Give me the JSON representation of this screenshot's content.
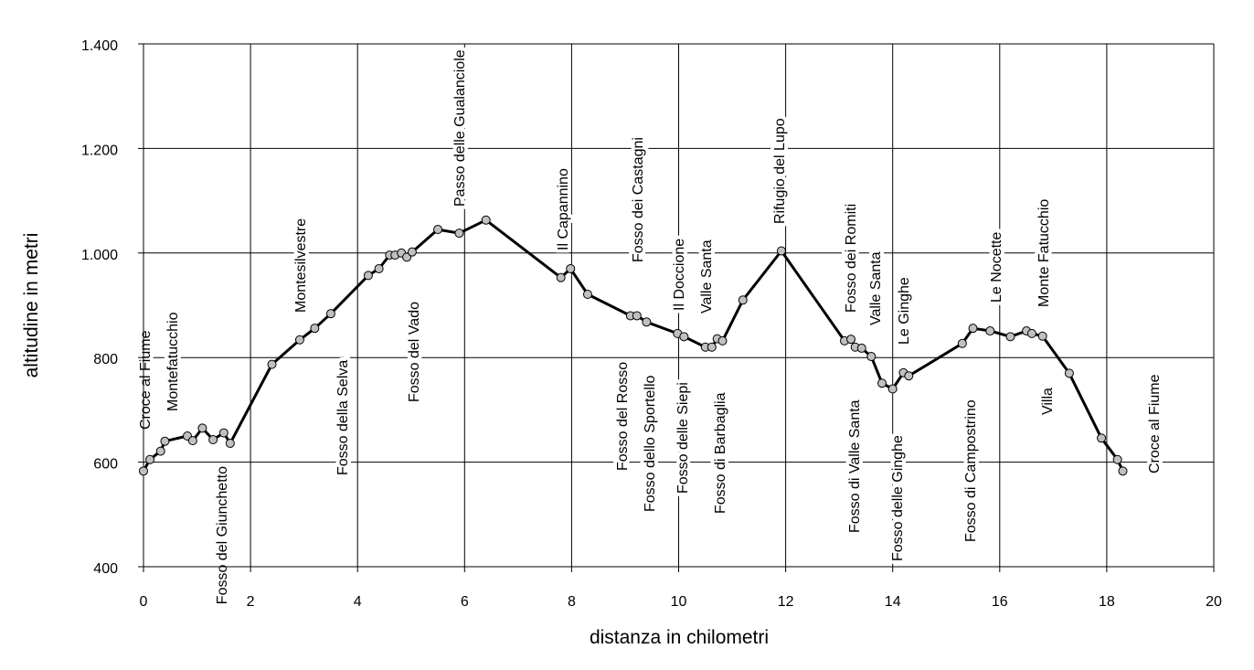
{
  "chart_data": {
    "type": "line",
    "title": "",
    "xlabel": "distanza in chilometri",
    "ylabel": "altitudine  in metri",
    "xlim": [
      0,
      20
    ],
    "ylim": [
      400,
      1400
    ],
    "x_ticks": [
      "0",
      "2",
      "4",
      "6",
      "8",
      "10",
      "12",
      "14",
      "16",
      "18",
      "20"
    ],
    "y_ticks": [
      "400",
      "600",
      "800",
      "1.000",
      "1.200",
      "1.400"
    ],
    "grid": true,
    "series": [
      {
        "name": "",
        "color": "#000000",
        "marker_color": "#c0c0c0",
        "points": [
          [
            0.0,
            583
          ],
          [
            0.12,
            605
          ],
          [
            0.32,
            621
          ],
          [
            0.4,
            640
          ],
          [
            0.82,
            650
          ],
          [
            0.92,
            641
          ],
          [
            1.1,
            665
          ],
          [
            1.3,
            643
          ],
          [
            1.5,
            656
          ],
          [
            1.62,
            636
          ],
          [
            2.4,
            787
          ],
          [
            2.92,
            834
          ],
          [
            3.2,
            856
          ],
          [
            3.5,
            884
          ],
          [
            4.2,
            957
          ],
          [
            4.4,
            970
          ],
          [
            4.6,
            996
          ],
          [
            4.7,
            996
          ],
          [
            4.82,
            1000
          ],
          [
            4.92,
            992
          ],
          [
            5.02,
            1002
          ],
          [
            5.5,
            1045
          ],
          [
            5.9,
            1038
          ],
          [
            6.4,
            1063
          ],
          [
            7.8,
            953
          ],
          [
            7.98,
            970
          ],
          [
            8.3,
            921
          ],
          [
            9.1,
            880
          ],
          [
            9.22,
            880
          ],
          [
            9.4,
            868
          ],
          [
            9.98,
            846
          ],
          [
            10.1,
            840
          ],
          [
            10.5,
            820
          ],
          [
            10.62,
            820
          ],
          [
            10.72,
            836
          ],
          [
            10.82,
            832
          ],
          [
            11.2,
            910
          ],
          [
            11.92,
            1004
          ],
          [
            13.1,
            832
          ],
          [
            13.22,
            835
          ],
          [
            13.3,
            820
          ],
          [
            13.42,
            818
          ],
          [
            13.6,
            802
          ],
          [
            13.8,
            751
          ],
          [
            14.0,
            740
          ],
          [
            14.2,
            771
          ],
          [
            14.3,
            765
          ],
          [
            15.3,
            827
          ],
          [
            15.5,
            856
          ],
          [
            15.82,
            851
          ],
          [
            16.2,
            840
          ],
          [
            16.5,
            851
          ],
          [
            16.6,
            846
          ],
          [
            16.8,
            841
          ],
          [
            17.3,
            770
          ],
          [
            17.9,
            646
          ],
          [
            18.2,
            605
          ],
          [
            18.3,
            583
          ]
        ]
      }
    ],
    "annotations": [
      {
        "text": "Croce al Fiume",
        "x": 0.0,
        "y": 583
      },
      {
        "text": "Montefatucchio",
        "x": 0.4,
        "y": 640
      },
      {
        "text": "Fosso del Giunchetto",
        "x": 1.62,
        "y": 636
      },
      {
        "text": "Montesilvestre",
        "x": 2.92,
        "y": 834
      },
      {
        "text": "Fosso della Selva",
        "x": 3.75,
        "y": 884
      },
      {
        "text": "Fosso del Vado",
        "x": 5.02,
        "y": 1002
      },
      {
        "text": "Passo delle Gualanciole",
        "x": 6.0,
        "y": 1063
      },
      {
        "text": "Il Capannino",
        "x": 8.0,
        "y": 970
      },
      {
        "text": "Fosso del Rosso",
        "x": 9.1,
        "y": 880
      },
      {
        "text": "Fosso dei Castagni",
        "x": 9.22,
        "y": 880
      },
      {
        "text": "Fosso dello Sportello",
        "x": 9.6,
        "y": 868
      },
      {
        "text": "Il Doccione",
        "x": 10.0,
        "y": 846
      },
      {
        "text": "Fosso delle Siepi",
        "x": 10.1,
        "y": 840
      },
      {
        "text": "Valle Santa",
        "x": 10.5,
        "y": 820
      },
      {
        "text": "Fosso di Barbaglia",
        "x": 10.82,
        "y": 832
      },
      {
        "text": "Rifugio del Lupo",
        "x": 11.92,
        "y": 1004
      },
      {
        "text": "Fosso di Valle Santa",
        "x": 13.3,
        "y": 820
      },
      {
        "text": "Fosso dei Romiti",
        "x": 13.22,
        "y": 835
      },
      {
        "text": "Valle Santa",
        "x": 13.6,
        "y": 802
      },
      {
        "text": "Le Ginghe",
        "x": 14.2,
        "y": 771
      },
      {
        "text": "Fosso delle Ginghe",
        "x": 14.0,
        "y": 740
      },
      {
        "text": "Fosso di Campostrino",
        "x": 15.3,
        "y": 827
      },
      {
        "text": "Le Nocette",
        "x": 15.82,
        "y": 851
      },
      {
        "text": "Monte Fatucchio",
        "x": 16.8,
        "y": 841
      },
      {
        "text": "Villa",
        "x": 17.3,
        "y": 770
      },
      {
        "text": "Croce al Fiume",
        "x": 18.3,
        "y": 583
      }
    ]
  }
}
